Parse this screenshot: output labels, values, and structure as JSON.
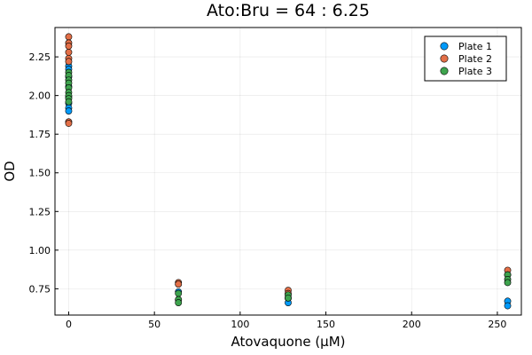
{
  "chart_data": {
    "type": "scatter",
    "title": "Ato:Bru = 64 : 6.25",
    "xlabel": "Atovaquone (μM)",
    "ylabel": "OD",
    "xlim": [
      -8,
      264
    ],
    "ylim": [
      0.58,
      2.44
    ],
    "xticks": [
      0,
      50,
      100,
      150,
      200,
      250
    ],
    "yticks": [
      0.75,
      1.0,
      1.25,
      1.5,
      1.75,
      2.0,
      2.25
    ],
    "xtick_labels": [
      "0",
      "50",
      "100",
      "150",
      "200",
      "250"
    ],
    "ytick_labels": [
      "0.75",
      "1.00",
      "1.25",
      "1.50",
      "1.75",
      "2.00",
      "2.25"
    ],
    "grid": true,
    "legend_position": "top-right",
    "series": [
      {
        "name": "Plate 1",
        "color": "#009AFA",
        "points": [
          [
            0,
            2.19
          ],
          [
            0,
            2.17
          ],
          [
            0,
            2.12
          ],
          [
            0,
            2.06
          ],
          [
            0,
            1.99
          ],
          [
            0,
            1.95
          ],
          [
            0,
            1.92
          ],
          [
            0,
            1.9
          ],
          [
            64,
            0.78
          ],
          [
            64,
            0.73
          ],
          [
            64,
            0.68
          ],
          [
            128,
            0.69
          ],
          [
            128,
            0.66
          ],
          [
            256,
            0.67
          ],
          [
            256,
            0.64
          ]
        ]
      },
      {
        "name": "Plate 2",
        "color": "#E36F47",
        "points": [
          [
            0,
            2.38
          ],
          [
            0,
            2.34
          ],
          [
            0,
            2.32
          ],
          [
            0,
            2.28
          ],
          [
            0,
            2.24
          ],
          [
            0,
            2.22
          ],
          [
            0,
            1.83
          ],
          [
            0,
            1.82
          ],
          [
            64,
            0.79
          ],
          [
            64,
            0.78
          ],
          [
            128,
            0.74
          ],
          [
            128,
            0.72
          ],
          [
            256,
            0.87
          ],
          [
            256,
            0.84
          ]
        ]
      },
      {
        "name": "Plate 3",
        "color": "#3EA44E",
        "points": [
          [
            0,
            2.15
          ],
          [
            0,
            2.13
          ],
          [
            0,
            2.1
          ],
          [
            0,
            2.08
          ],
          [
            0,
            2.05
          ],
          [
            0,
            2.02
          ],
          [
            0,
            2.0
          ],
          [
            0,
            1.98
          ],
          [
            0,
            1.96
          ],
          [
            64,
            0.72
          ],
          [
            64,
            0.68
          ],
          [
            64,
            0.66
          ],
          [
            128,
            0.71
          ],
          [
            128,
            0.69
          ],
          [
            256,
            0.84
          ],
          [
            256,
            0.81
          ],
          [
            256,
            0.79
          ]
        ]
      }
    ]
  }
}
